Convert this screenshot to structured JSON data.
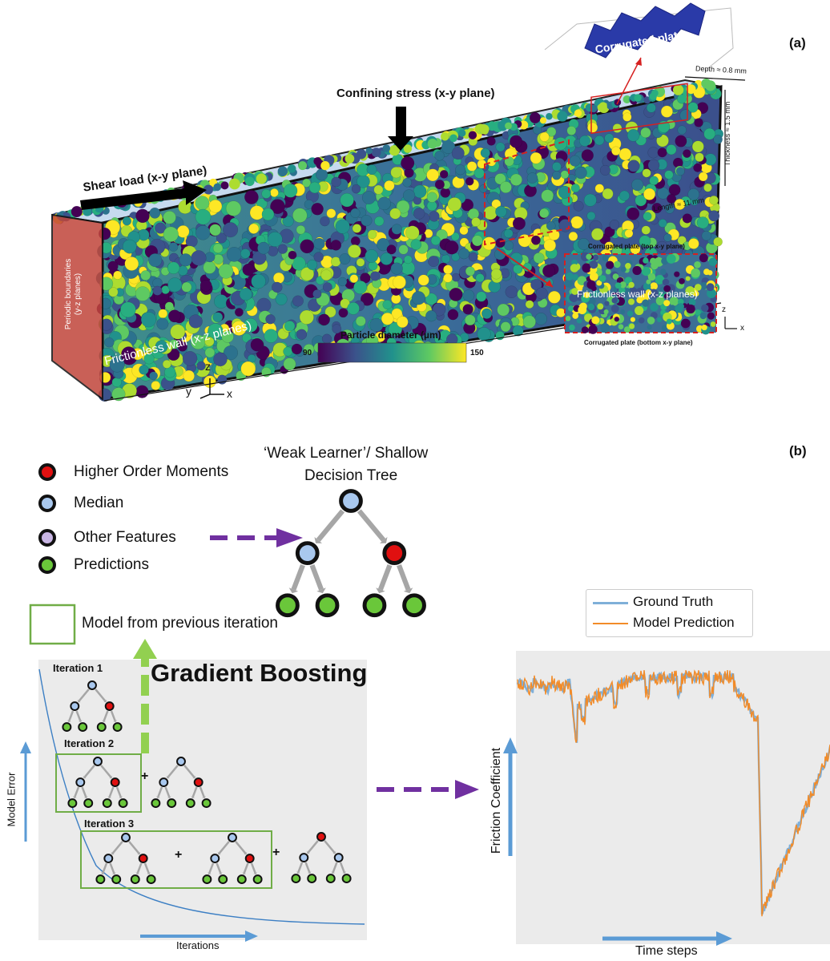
{
  "panel_a": {
    "tag": "(a)",
    "corrugated_plate": "Corrugated plate",
    "depth": "Depth ≈ 0.8 mm",
    "thickness": "Thickness ≈ 1.5 mm",
    "length": "Length ≈ 11 mm",
    "confining_stress": "Confining stress (x-y plane)",
    "shear_load": "Shear load (x-y plane)",
    "periodic_line1": "Periodic boundaries",
    "periodic_line2": "(y-z planes)",
    "frictionless_wall": "Frictionless wall (x-z planes)",
    "colorbar_title": "Particle diameter (µm)",
    "colorbar_min": "90",
    "colorbar_max": "150",
    "axes_z": "z",
    "axes_y": "y",
    "axes_x": "x",
    "inset_top": "Corrugated plate (top x-y plane)",
    "inset_mid": "Frictionless wall (x-z planes)",
    "inset_bottom": "Corrugated plate (bottom x-y plane)",
    "colors": {
      "box_top": "#bcd3ea",
      "plate": "#2a3aa8",
      "red": "#d62020"
    }
  },
  "panel_b": {
    "tag": "(b)",
    "tree_title_1": "‘Weak Learner’/ Shallow",
    "tree_title_2": "Decision Tree",
    "legend": [
      {
        "label": "Higher Order Moments",
        "color": "#e01010"
      },
      {
        "label": "Median",
        "color": "#a9c8ee"
      },
      {
        "label": "Other Features",
        "color": "#c9b6e4"
      },
      {
        "label": "Predictions",
        "color": "#6ac73a"
      }
    ],
    "model_prev": "Model from previous iteration",
    "gradient_boosting": "Gradient Boosting",
    "iteration1": "Iteration 1",
    "iteration2": "Iteration 2",
    "iteration3": "Iteration 3",
    "plus": "+",
    "model_error": "Model Error",
    "iterations": "Iterations",
    "friction_coefficient": "Friction Coefficient",
    "time_steps": "Time steps",
    "series_ground_truth": "Ground Truth",
    "series_model_prediction": "Model Prediction",
    "colors": {
      "ground_truth": "#7fafd8",
      "prediction": "#f28b28",
      "arrow": "#5b9bd5",
      "dash_arrow": "#7030a0",
      "green": "#70ad47"
    }
  }
}
